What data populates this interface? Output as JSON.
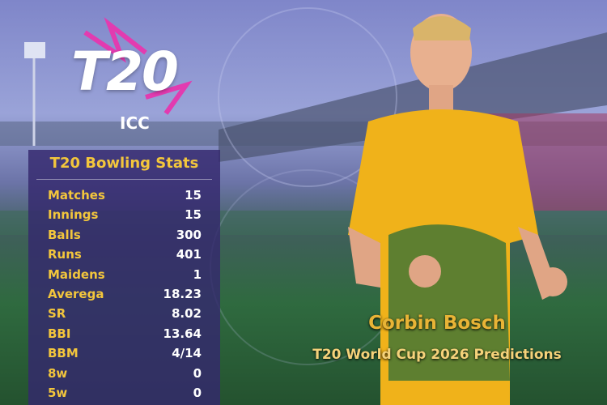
{
  "logo": {
    "main": "T20",
    "sub": "ICC"
  },
  "stats": {
    "title": "T20 Bowling Stats",
    "rows": [
      [
        "Matches",
        "15"
      ],
      [
        "Innings",
        "15"
      ],
      [
        "Balls",
        "300"
      ],
      [
        "Runs",
        "401"
      ],
      [
        "Maidens",
        "1"
      ],
      [
        "Averega",
        "18.23"
      ],
      [
        "SR",
        "8.02"
      ],
      [
        "BBI",
        "13.64"
      ],
      [
        "BBM",
        "4/14"
      ],
      [
        "8w",
        "0"
      ],
      [
        "5w",
        "0"
      ]
    ]
  },
  "player": {
    "name": "Corbin Bosch",
    "caption": "T20 World Cup 2026 Predictions"
  }
}
